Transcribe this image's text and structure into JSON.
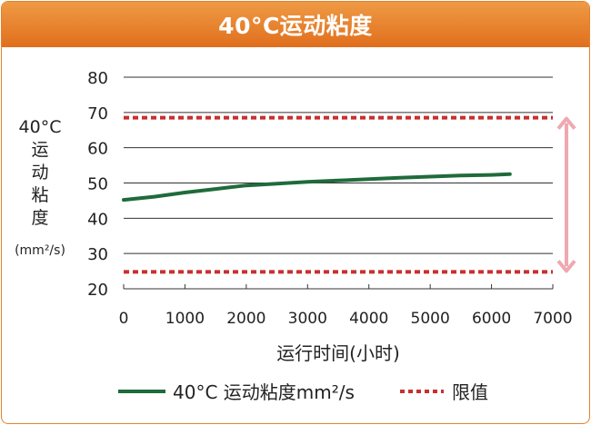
{
  "chart_data": {
    "type": "line",
    "title": "40°C运动粘度",
    "xlabel": "运行时间(小时)",
    "ylabel": {
      "line1": "40°C",
      "chars": [
        "运",
        "动",
        "粘",
        "度"
      ],
      "unit": "(mm²/s)"
    },
    "xlim": [
      0,
      7000
    ],
    "ylim": [
      20,
      80
    ],
    "xticks": [
      "0",
      "1000",
      "2000",
      "3000",
      "4000",
      "5000",
      "6000",
      "7000"
    ],
    "yticks": [
      "80",
      "70",
      "60",
      "50",
      "40",
      "30",
      "20"
    ],
    "grid": "horizontal",
    "series": [
      {
        "name": "40°C 运动粘度mm²/s",
        "color": "#1f6b3a",
        "x": [
          0,
          500,
          1000,
          1500,
          2000,
          2500,
          3000,
          3500,
          4000,
          4500,
          5000,
          5500,
          6000,
          6300
        ],
        "y": [
          45.2,
          46.1,
          47.3,
          48.3,
          49.3,
          49.8,
          50.3,
          50.7,
          51.1,
          51.5,
          51.8,
          52.1,
          52.3,
          52.5
        ]
      }
    ],
    "limits": {
      "name": "限值",
      "color": "#c8302e",
      "values": [
        68.5,
        24.8
      ]
    },
    "range_indicator": {
      "from": 24.8,
      "to": 68.5,
      "color": "#f0a8b0"
    },
    "legend_position": "bottom"
  }
}
